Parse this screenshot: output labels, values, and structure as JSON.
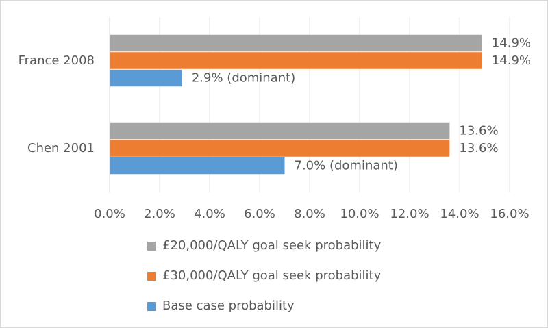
{
  "chart_data": {
    "type": "hbar",
    "categories": [
      "France 2008",
      "Chen 2001"
    ],
    "series": [
      {
        "name": "£20,000/QALY goal seek probability",
        "color": "#a5a5a5",
        "values": [
          14.9,
          13.6
        ],
        "value_labels": [
          "14.9%",
          "13.6%"
        ]
      },
      {
        "name": "£30,000/QALY goal seek probability",
        "color": "#ed7d31",
        "values": [
          14.9,
          13.6
        ],
        "value_labels": [
          "14.9%",
          "13.6%"
        ]
      },
      {
        "name": "Base case probability",
        "color": "#5b9bd5",
        "values": [
          2.9,
          7.0
        ],
        "value_labels": [
          "2.9% (dominant)",
          "7.0% (dominant)"
        ]
      }
    ],
    "xlim": [
      0,
      16
    ],
    "xticks": [
      {
        "value": 0,
        "label": "0.0%"
      },
      {
        "value": 2,
        "label": "2.0%"
      },
      {
        "value": 4,
        "label": "4.0%"
      },
      {
        "value": 6,
        "label": "6.0%"
      },
      {
        "value": 8,
        "label": "8.0%"
      },
      {
        "value": 10,
        "label": "10.0%"
      },
      {
        "value": 12,
        "label": "12.0%"
      },
      {
        "value": 14,
        "label": "14.0%"
      },
      {
        "value": 16,
        "label": "16.0%"
      }
    ],
    "grid": true,
    "legend": "bottom"
  }
}
